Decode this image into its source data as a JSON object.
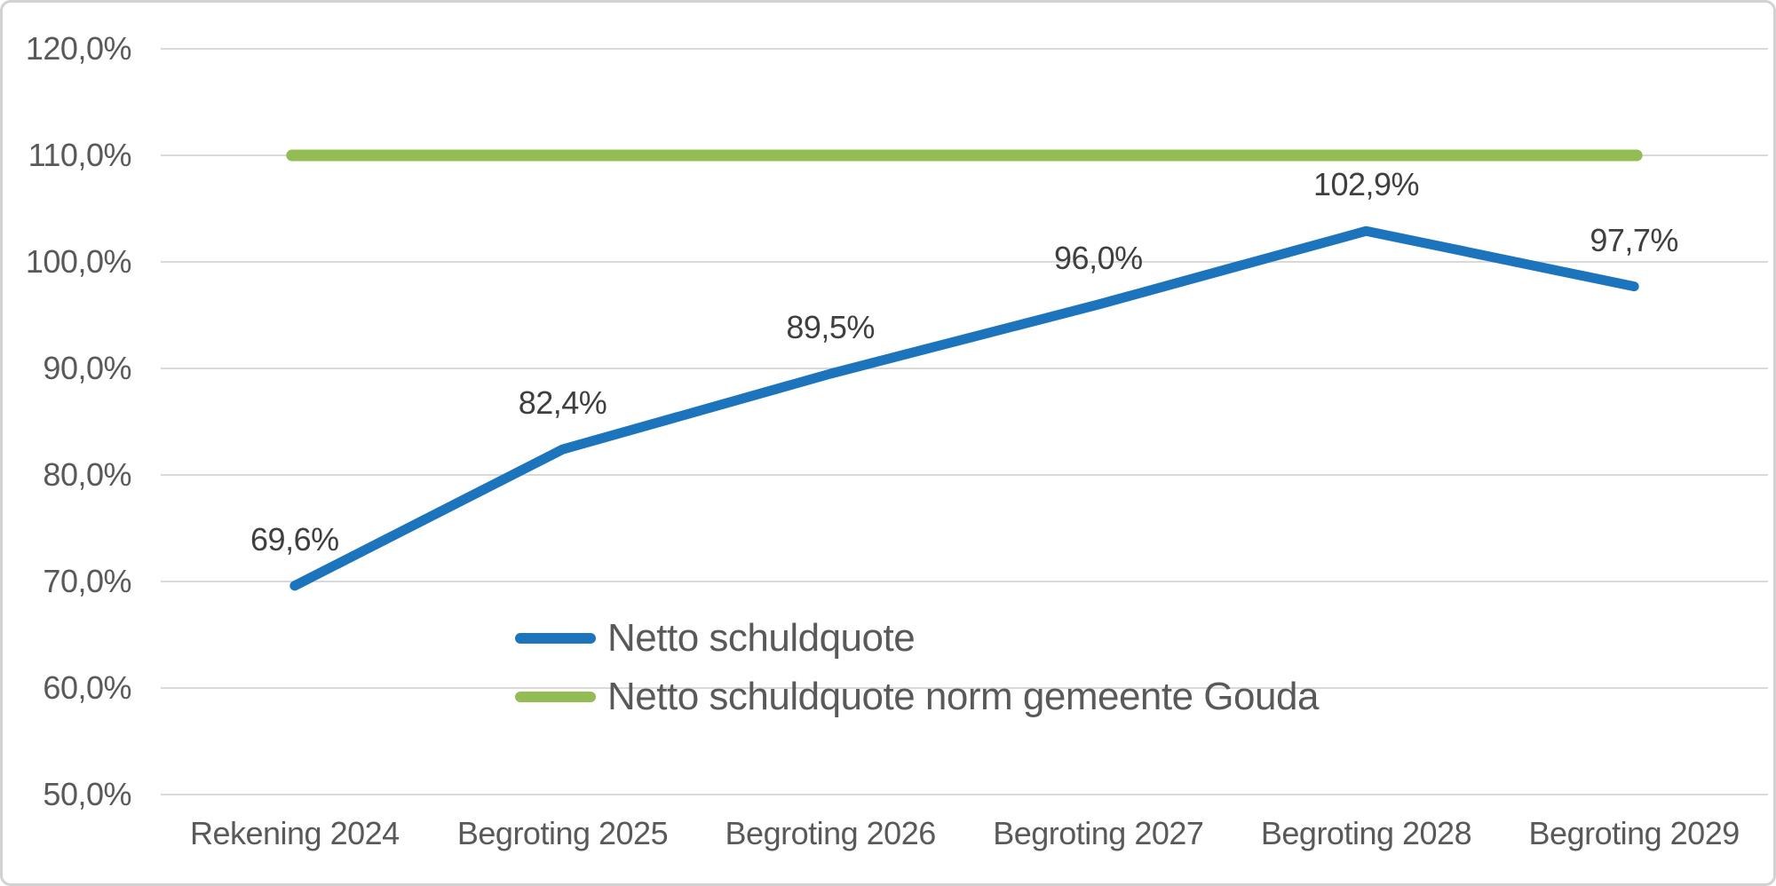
{
  "chart_data": {
    "type": "line",
    "title": "",
    "xlabel": "",
    "ylabel": "",
    "categories": [
      "Rekening 2024",
      "Begroting 2025",
      "Begroting 2026",
      "Begroting 2027",
      "Begroting 2028",
      "Begroting 2029"
    ],
    "series": [
      {
        "name": "Netto schuldquote",
        "color": "#1b74bc",
        "values": [
          69.6,
          82.4,
          89.5,
          96.0,
          102.9,
          97.7
        ],
        "point_labels": [
          "69,6%",
          "82,4%",
          "89,5%",
          "96,0%",
          "102,9%",
          "97,7%"
        ]
      },
      {
        "name": "Netto schuldquote norm gemeente Gouda",
        "color": "#94bc55",
        "values": [
          110,
          110,
          110,
          110,
          110,
          110
        ]
      }
    ],
    "ylim": [
      50,
      120
    ],
    "ytick_step": 10,
    "yticks": [
      {
        "value": 120,
        "label": "120,0%"
      },
      {
        "value": 110,
        "label": "110,0%"
      },
      {
        "value": 100,
        "label": "100,0%"
      },
      {
        "value": 90,
        "label": "90,0%"
      },
      {
        "value": 80,
        "label": "80,0%"
      },
      {
        "value": 70,
        "label": "70,0%"
      },
      {
        "value": 60,
        "label": "60,0%"
      },
      {
        "value": 50,
        "label": "50,0%"
      }
    ],
    "grid": true,
    "legend_position": "inside-bottom-left",
    "colors": {
      "axis_text": "#595959",
      "data_label_text": "#3f3f3f",
      "gridline": "#d9d9d9",
      "frame_border": "#d2d2d2",
      "background": "#ffffff"
    }
  }
}
